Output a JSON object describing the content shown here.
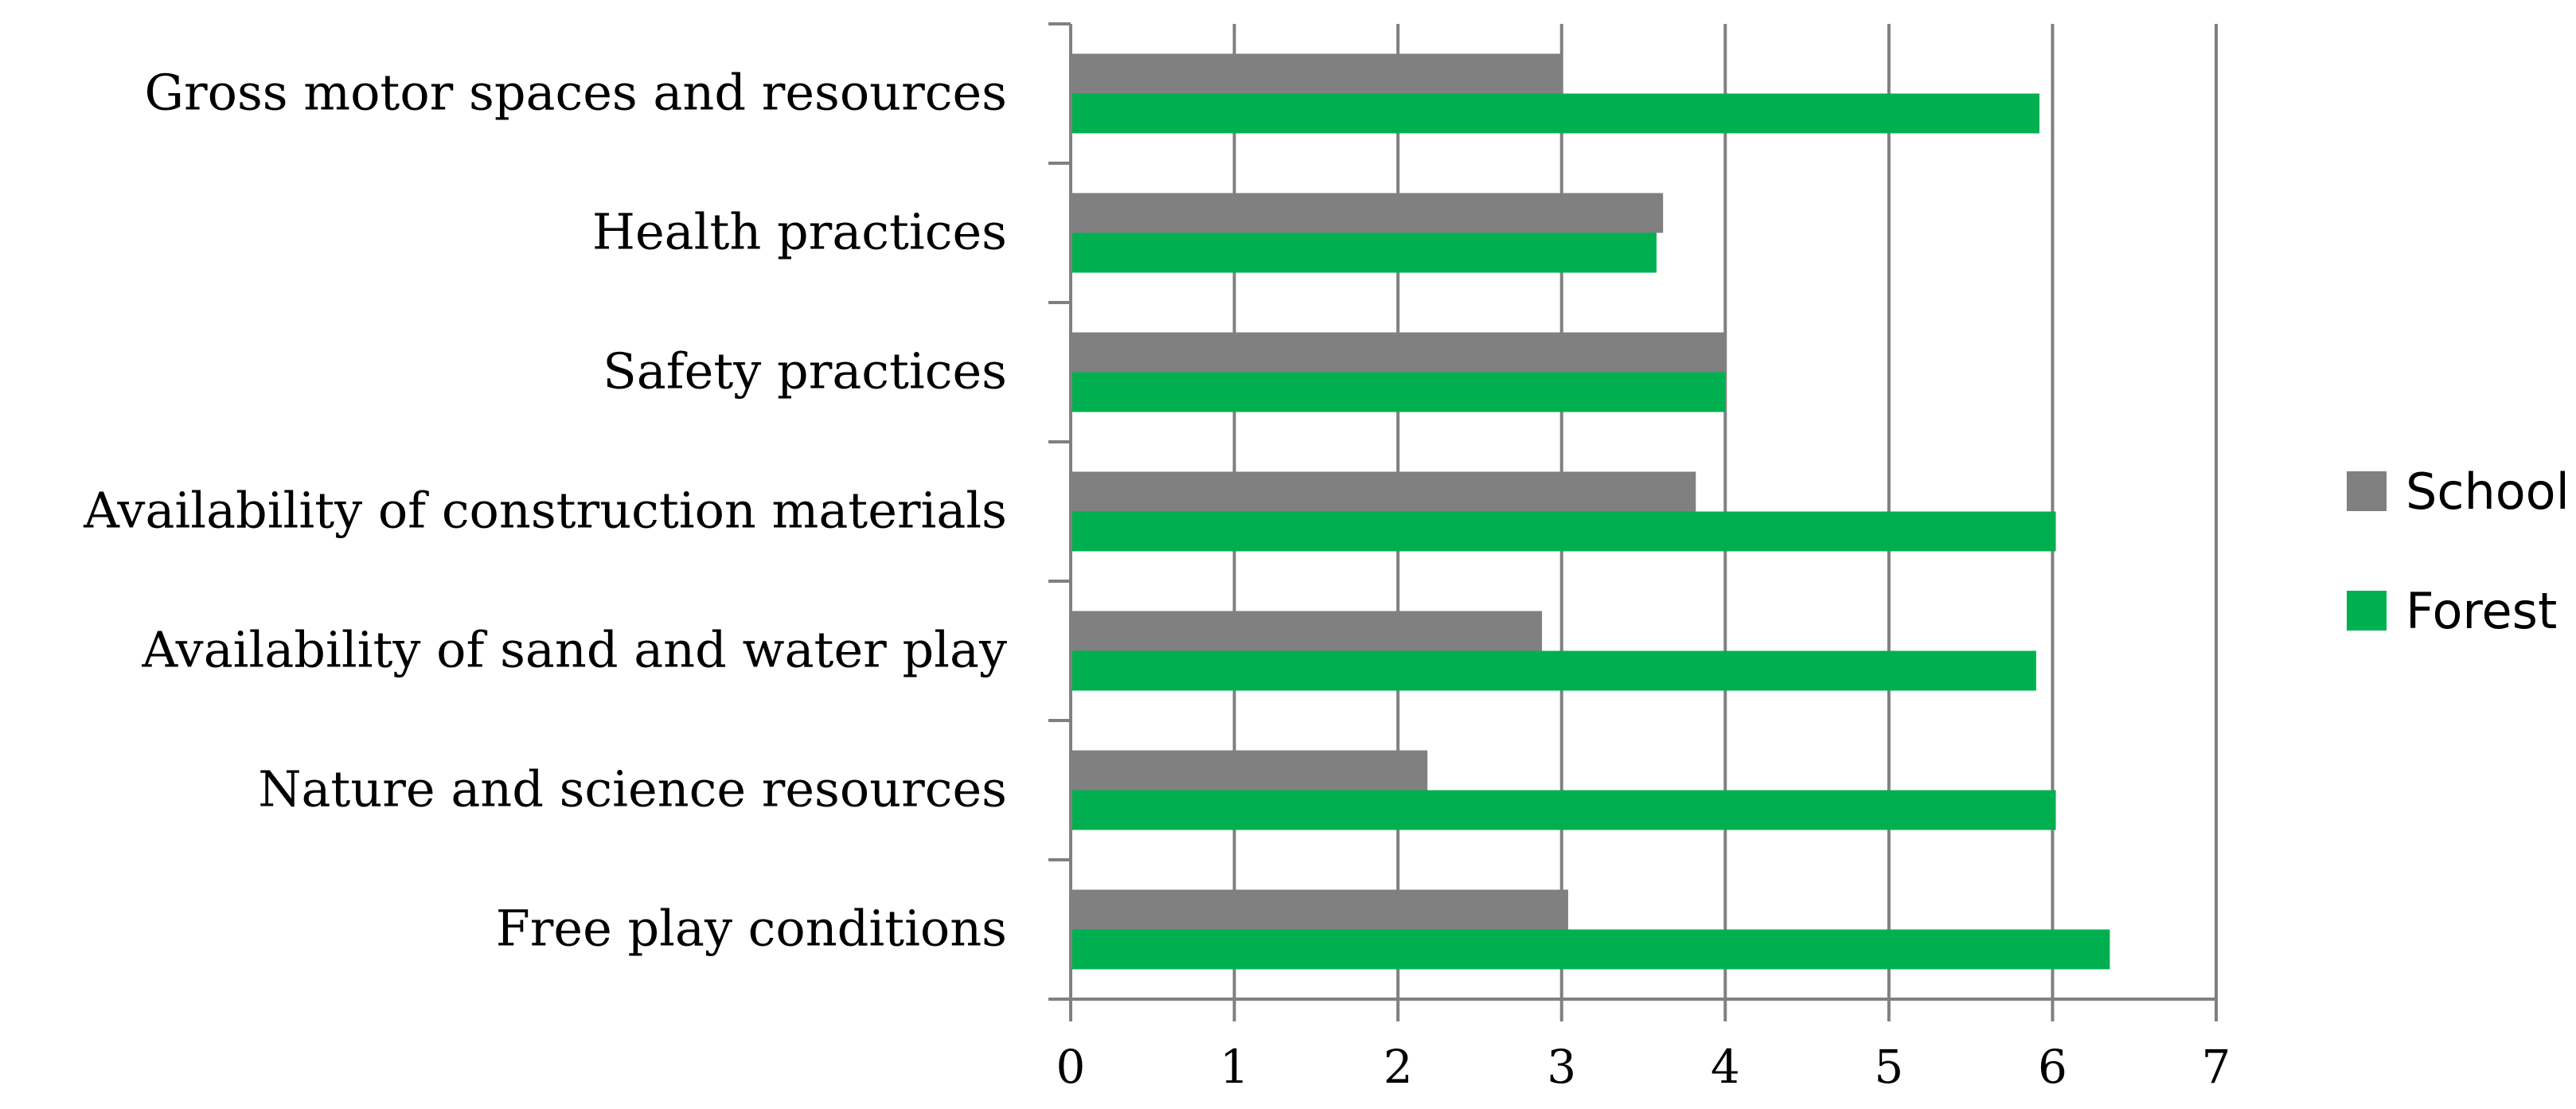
{
  "chart_data": {
    "type": "bar",
    "orientation": "horizontal",
    "categories": [
      "Gross motor spaces and resources",
      "Health practices",
      "Safety practices",
      "Availability of construction materials",
      "Availability of sand and water play",
      "Nature and science resources",
      "Free play conditions"
    ],
    "series": [
      {
        "name": "School",
        "color": "#808080",
        "values": [
          3.0,
          3.62,
          4.0,
          3.82,
          2.88,
          2.18,
          3.04
        ]
      },
      {
        "name": "Forest",
        "color": "#00b050",
        "values": [
          5.92,
          3.58,
          4.0,
          6.02,
          5.9,
          6.02,
          6.35
        ]
      }
    ],
    "xlim": [
      0,
      7
    ],
    "xticks": [
      "0",
      "1",
      "2",
      "3",
      "4",
      "5",
      "6",
      "7"
    ],
    "grid": "vertical",
    "legend": "right",
    "title": "",
    "xlabel": "",
    "ylabel": ""
  }
}
